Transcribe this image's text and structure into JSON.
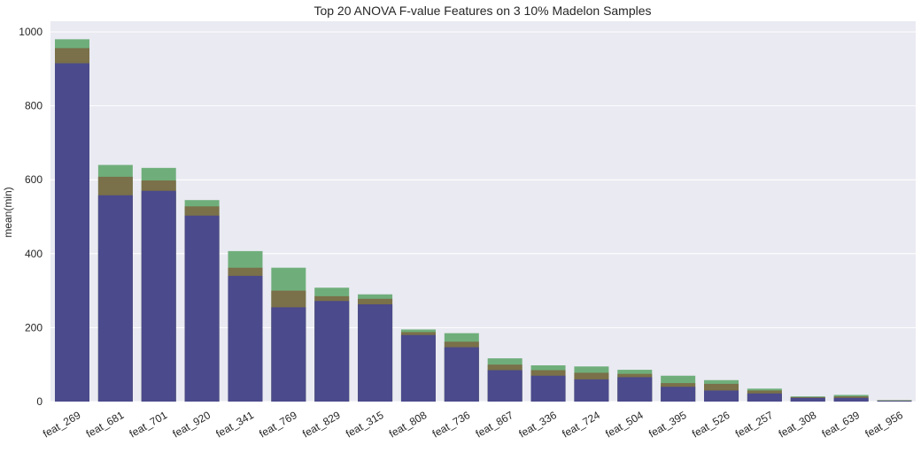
{
  "chart_data": {
    "type": "bar",
    "title": "Top 20 ANOVA F-value Features on 3 10% Madelon Samples",
    "xlabel": "",
    "ylabel": "mean(min)",
    "ylim": [
      0,
      1000
    ],
    "yticks": [
      0,
      200,
      400,
      600,
      800,
      1000
    ],
    "grid": true,
    "legend": "none",
    "categories": [
      "feat_269",
      "feat_681",
      "feat_701",
      "feat_920",
      "feat_341",
      "feat_769",
      "feat_829",
      "feat_315",
      "feat_808",
      "feat_736",
      "feat_867",
      "feat_336",
      "feat_724",
      "feat_504",
      "feat_395",
      "feat_526",
      "feat_257",
      "feat_308",
      "feat_639",
      "feat_956"
    ],
    "series": [
      {
        "color": "#6fae7b",
        "values": [
          980,
          640,
          632,
          545,
          407,
          362,
          308,
          290,
          195,
          185,
          117,
          98,
          95,
          86,
          70,
          58,
          35,
          14,
          18,
          4
        ]
      },
      {
        "color": "#7a7049",
        "values": [
          956,
          608,
          598,
          528,
          362,
          300,
          285,
          278,
          188,
          162,
          100,
          85,
          78,
          75,
          50,
          48,
          30,
          12,
          14,
          3
        ]
      },
      {
        "color": "#4b4a8c",
        "values": [
          915,
          558,
          570,
          503,
          340,
          255,
          272,
          263,
          180,
          147,
          85,
          70,
          60,
          66,
          40,
          30,
          22,
          10,
          10,
          2
        ]
      }
    ]
  }
}
